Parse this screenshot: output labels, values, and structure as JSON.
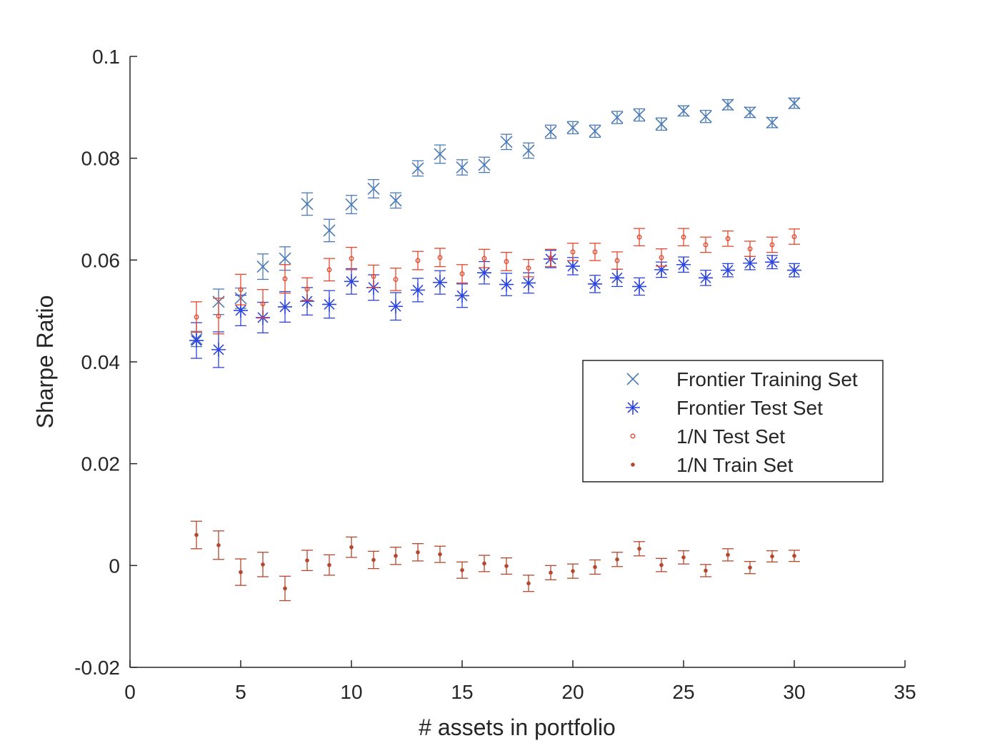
{
  "chart_data": {
    "type": "scatter",
    "title": "",
    "xlabel": "# assets in portfolio",
    "ylabel": "Sharpe Ratio",
    "xlim": [
      0,
      35
    ],
    "ylim": [
      -0.02,
      0.1
    ],
    "xticks": [
      0,
      5,
      10,
      15,
      20,
      25,
      30,
      35
    ],
    "yticks": [
      -0.02,
      0,
      0.02,
      0.04,
      0.06,
      0.08,
      0.1
    ],
    "xtick_labels": [
      "0",
      "5",
      "10",
      "15",
      "20",
      "25",
      "30",
      "35"
    ],
    "ytick_labels": [
      "-0.02",
      "0",
      "0.02",
      "0.04",
      "0.06",
      "0.08",
      "0.1"
    ],
    "grid": false,
    "legend_position": "right-middle",
    "x": [
      3,
      4,
      5,
      6,
      7,
      8,
      9,
      10,
      11,
      12,
      13,
      14,
      15,
      16,
      17,
      18,
      19,
      20,
      21,
      22,
      23,
      24,
      25,
      26,
      27,
      28,
      29,
      30
    ],
    "series": [
      {
        "name": "Frontier Training Set",
        "marker": "x",
        "color": "#4a7ab5",
        "values": [
          0.0445,
          0.0518,
          0.0525,
          0.0587,
          0.0603,
          0.071,
          0.0658,
          0.0709,
          0.074,
          0.0717,
          0.078,
          0.0808,
          0.0782,
          0.0787,
          0.0832,
          0.0815,
          0.0852,
          0.086,
          0.0853,
          0.088,
          0.0885,
          0.0867,
          0.0893,
          0.0882,
          0.0905,
          0.089,
          0.087,
          0.0908
        ],
        "errors": [
          0.0015,
          0.0025,
          0.002,
          0.0025,
          0.0023,
          0.0022,
          0.0022,
          0.0018,
          0.0018,
          0.0015,
          0.0015,
          0.0018,
          0.0015,
          0.0015,
          0.0015,
          0.0015,
          0.0013,
          0.0012,
          0.0012,
          0.0012,
          0.0012,
          0.0012,
          0.001,
          0.0012,
          0.001,
          0.001,
          0.001,
          0.001
        ]
      },
      {
        "name": "Frontier Test Set",
        "marker": "asterisk",
        "color": "#2c44e0",
        "values": [
          0.0442,
          0.0424,
          0.0501,
          0.0487,
          0.0508,
          0.0519,
          0.0513,
          0.0558,
          0.0546,
          0.0509,
          0.0541,
          0.0556,
          0.053,
          0.0575,
          0.0552,
          0.0555,
          0.0602,
          0.0588,
          0.0553,
          0.0565,
          0.0548,
          0.0581,
          0.0591,
          0.0565,
          0.058,
          0.0594,
          0.0596,
          0.058
        ],
        "errors": [
          0.0035,
          0.0035,
          0.003,
          0.003,
          0.003,
          0.0027,
          0.0027,
          0.0025,
          0.0025,
          0.0027,
          0.0023,
          0.0023,
          0.0023,
          0.0022,
          0.0022,
          0.002,
          0.0017,
          0.0017,
          0.0017,
          0.0017,
          0.0017,
          0.0015,
          0.0015,
          0.0015,
          0.0013,
          0.0013,
          0.0013,
          0.0013
        ]
      },
      {
        "name": "1/N Test Set",
        "marker": "circle",
        "color": "#e8452c",
        "values": [
          0.0488,
          0.049,
          0.0542,
          0.0514,
          0.0563,
          0.0543,
          0.0581,
          0.0603,
          0.0568,
          0.0562,
          0.0599,
          0.0605,
          0.0573,
          0.0603,
          0.0597,
          0.0584,
          0.0604,
          0.0616,
          0.0616,
          0.0599,
          0.0645,
          0.0605,
          0.0645,
          0.063,
          0.0642,
          0.0622,
          0.063,
          0.0646
        ],
        "errors": [
          0.003,
          0.0035,
          0.003,
          0.0028,
          0.0028,
          0.0022,
          0.0022,
          0.0022,
          0.0022,
          0.0022,
          0.0018,
          0.0018,
          0.0018,
          0.0018,
          0.0018,
          0.0017,
          0.0017,
          0.0017,
          0.0017,
          0.0017,
          0.0017,
          0.0017,
          0.0017,
          0.0015,
          0.0015,
          0.0015,
          0.0015,
          0.0015
        ]
      },
      {
        "name": "1/N Train Set",
        "marker": "dot",
        "color": "#b5472e",
        "values": [
          0.006,
          0.004,
          -0.0013,
          0.0002,
          -0.0045,
          0.001,
          0.0001,
          0.0036,
          0.0011,
          0.0019,
          0.0026,
          0.0022,
          -0.0009,
          0.0004,
          -0.0001,
          -0.0035,
          -0.0014,
          -0.0011,
          -0.0003,
          0.0012,
          0.0033,
          0.0001,
          0.0016,
          -0.001,
          0.0021,
          -0.0004,
          0.0018,
          0.0019
        ],
        "errors": [
          0.0027,
          0.0028,
          0.0026,
          0.0024,
          0.0024,
          0.002,
          0.002,
          0.002,
          0.0017,
          0.0017,
          0.0017,
          0.0016,
          0.0016,
          0.0016,
          0.0016,
          0.0016,
          0.0014,
          0.0014,
          0.0014,
          0.0014,
          0.0014,
          0.0013,
          0.0013,
          0.0012,
          0.0012,
          0.0012,
          0.0011,
          0.0011
        ]
      }
    ]
  }
}
